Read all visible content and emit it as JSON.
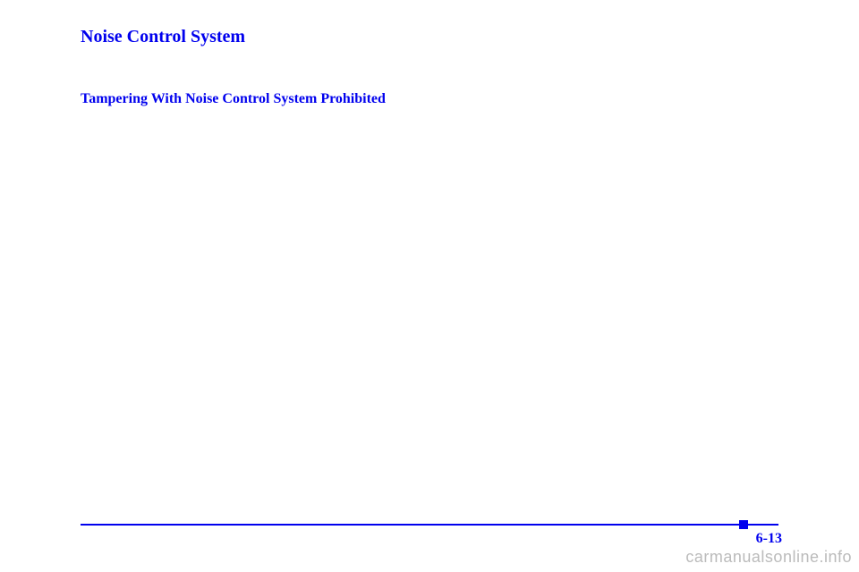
{
  "headings": {
    "main": "Noise Control System",
    "sub": "Tampering With Noise Control System Prohibited"
  },
  "footer": {
    "pageNumber": "6-13",
    "watermark": "carmanualsonline.info"
  },
  "colors": {
    "accent": "#0000ee",
    "background": "#ffffff",
    "watermark": "#bbbbbb"
  }
}
